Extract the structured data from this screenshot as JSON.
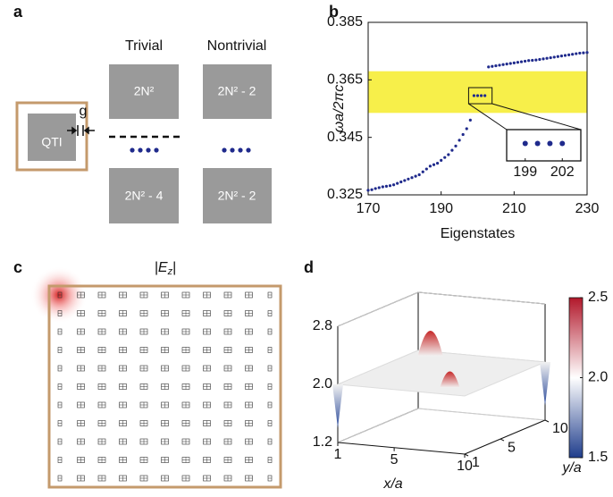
{
  "panel_labels": [
    "a",
    "b",
    "c",
    "d"
  ],
  "schematic": {
    "columns": [
      "Trivial",
      "Nontrivial"
    ],
    "top_row": [
      "2N²",
      "2N² - 2"
    ],
    "bottom_row": [
      "2N² - 4",
      "2N² - 2"
    ],
    "crystal_label": "QTI",
    "gap_label": "g"
  },
  "chart_data": {
    "type": "scatter",
    "y_label": "ωa/2πc",
    "x_label": "Eigenstates",
    "x": [
      170,
      171,
      172,
      173,
      174,
      175,
      176,
      177,
      178,
      179,
      180,
      181,
      182,
      183,
      184,
      185,
      186,
      187,
      188,
      189,
      190,
      191,
      192,
      193,
      194,
      195,
      196,
      197,
      198,
      199,
      200,
      201,
      202,
      203,
      204,
      205,
      206,
      207,
      208,
      209,
      210,
      211,
      212,
      213,
      214,
      215,
      216,
      217,
      218,
      219,
      220,
      221,
      222,
      223,
      224,
      225,
      226,
      227,
      228,
      229,
      230
    ],
    "values": [
      0.3266,
      0.3268,
      0.3272,
      0.3275,
      0.3278,
      0.328,
      0.3282,
      0.3285,
      0.329,
      0.3295,
      0.33,
      0.3305,
      0.331,
      0.3315,
      0.332,
      0.333,
      0.334,
      0.335,
      0.3355,
      0.336,
      0.337,
      0.338,
      0.339,
      0.3405,
      0.342,
      0.344,
      0.346,
      0.348,
      0.351,
      0.3595,
      0.3595,
      0.3595,
      0.3595,
      0.3695,
      0.3697,
      0.3699,
      0.3701,
      0.3703,
      0.3705,
      0.3707,
      0.3709,
      0.3711,
      0.3713,
      0.3715,
      0.3717,
      0.3718,
      0.3719,
      0.3721,
      0.3723,
      0.3725,
      0.3727,
      0.3729,
      0.3731,
      0.3733,
      0.3735,
      0.3737,
      0.3739,
      0.3741,
      0.3743,
      0.3744,
      0.3745
    ],
    "color": "#1f2a8c",
    "xlim": [
      170,
      230
    ],
    "ylim": [
      0.325,
      0.385
    ],
    "xticks": [
      170,
      190,
      210,
      230
    ],
    "yticks": [
      0.325,
      0.345,
      0.365,
      0.385
    ],
    "band": {
      "ylim": [
        0.3535,
        0.368
      ],
      "color": "#f7ef4a"
    },
    "inset": {
      "xlim": [
        197.5,
        203.5
      ],
      "xticks": [
        199,
        202
      ]
    }
  },
  "field_map": {
    "title_parts": [
      "|E",
      "z",
      "|"
    ]
  },
  "surface": {
    "x_label": "x/a",
    "y_label": "y/a",
    "xlim": [
      1,
      10
    ],
    "ylim": [
      1,
      10
    ],
    "xticks": [
      1,
      5,
      10
    ],
    "yticks": [
      1,
      5,
      10
    ],
    "zlim": [
      1.2,
      2.8
    ],
    "zticks": [
      1.2,
      {
        "value": 2,
        "label": "2.0"
      },
      2.8
    ],
    "colorbar": {
      "clim": [
        1.5,
        2.5
      ],
      "ticks": [
        1.5,
        {
          "value": 2,
          "label": "2.0"
        },
        2.5
      ]
    }
  }
}
